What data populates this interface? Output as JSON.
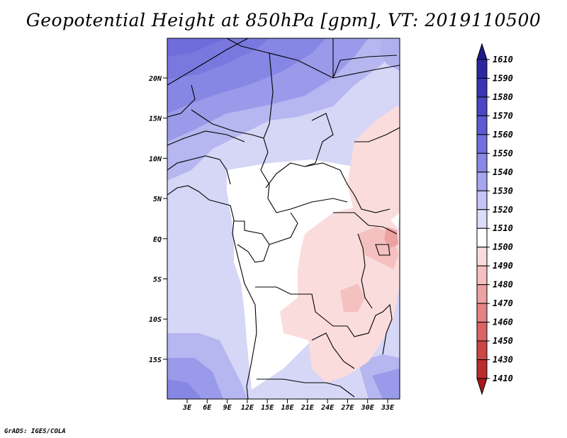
{
  "title": "Geopotential Height at 850hPa [gpm], VT: 2019110500",
  "footer": "GrADS: IGES/COLA",
  "map": {
    "lat_ticks": [
      "20N",
      "15N",
      "10N",
      "5N",
      "EQ",
      "5S",
      "10S",
      "15S"
    ],
    "lon_ticks": [
      "3E",
      "6E",
      "9E",
      "12E",
      "15E",
      "18E",
      "21E",
      "24E",
      "27E",
      "30E",
      "33E"
    ]
  },
  "colorbar": {
    "labels": [
      "1610",
      "1590",
      "1580",
      "1570",
      "1560",
      "1550",
      "1540",
      "1530",
      "1520",
      "1510",
      "1500",
      "1490",
      "1480",
      "1470",
      "1460",
      "1450",
      "1430",
      "1410"
    ],
    "colors": [
      "#1f1a8c",
      "#2c279f",
      "#3a35b2",
      "#4a46c4",
      "#5c59d2",
      "#716edd",
      "#8a88e6",
      "#a6a5ef",
      "#c4c4f6",
      "#dddcfb",
      "#ffffff",
      "#fbdcdc",
      "#f5c0c0",
      "#eda2a2",
      "#e48383",
      "#d96464",
      "#cc4646",
      "#bb2c2c",
      "#a41818"
    ]
  }
}
